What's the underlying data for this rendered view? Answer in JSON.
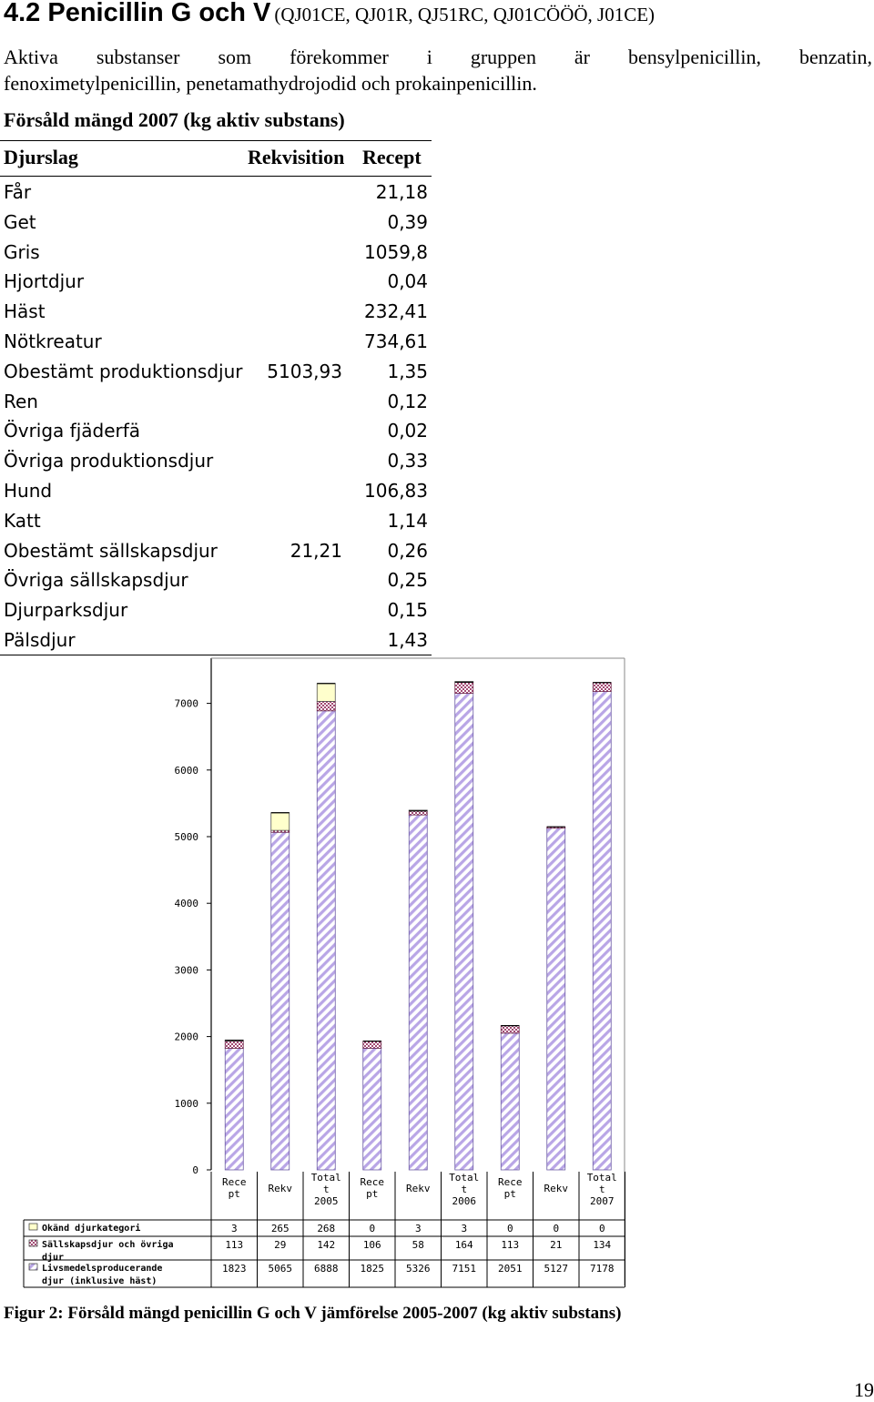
{
  "heading": {
    "title": "4.2 Penicillin G och V",
    "codes": "(QJ01CE, QJ01R, QJ51RC, QJ01CÖÖÖ, J01CE)"
  },
  "intro": {
    "line1_words": [
      "Aktiva",
      "substanser",
      "som",
      "förekommer",
      "i",
      "gruppen",
      "är",
      "bensylpenicillin,",
      "benzatin,"
    ],
    "line2": "fenoximetylpenicillin, penetamathydrojodid och prokainpenicillin."
  },
  "table": {
    "title": "Försåld mängd 2007 (kg aktiv substans)",
    "headers": [
      "Djurslag",
      "Rekvisition",
      "Recept"
    ],
    "rows": [
      {
        "species": "Får",
        "rekvisition": "",
        "recept": "21,18"
      },
      {
        "species": "Get",
        "rekvisition": "",
        "recept": "0,39"
      },
      {
        "species": "Gris",
        "rekvisition": "",
        "recept": "1059,8"
      },
      {
        "species": "Hjortdjur",
        "rekvisition": "",
        "recept": "0,04"
      },
      {
        "species": "Häst",
        "rekvisition": "",
        "recept": "232,41"
      },
      {
        "species": "Nötkreatur",
        "rekvisition": "",
        "recept": "734,61"
      },
      {
        "species": "Obestämt produktionsdjur",
        "rekvisition": "5103,93",
        "recept": "1,35"
      },
      {
        "species": "Ren",
        "rekvisition": "",
        "recept": "0,12"
      },
      {
        "species": "Övriga fjäderfä",
        "rekvisition": "",
        "recept": "0,02"
      },
      {
        "species": "Övriga produktionsdjur",
        "rekvisition": "",
        "recept": "0,33"
      },
      {
        "species": "Hund",
        "rekvisition": "",
        "recept": "106,83"
      },
      {
        "species": "Katt",
        "rekvisition": "",
        "recept": "1,14"
      },
      {
        "species": "Obestämt sällskapsdjur",
        "rekvisition": "21,21",
        "recept": "0,26"
      },
      {
        "species": "Övriga sällskapsdjur",
        "rekvisition": "",
        "recept": "0,25"
      },
      {
        "species": "Djurparksdjur",
        "rekvisition": "",
        "recept": "0,15"
      },
      {
        "species": "Pälsdjur",
        "rekvisition": "",
        "recept": "1,43"
      }
    ]
  },
  "chart_data": {
    "type": "bar",
    "stacked": true,
    "ylim": [
      0,
      7500
    ],
    "yticks": [
      "0",
      "1000",
      "2000",
      "3000",
      "4000",
      "5000",
      "6000",
      "7000"
    ],
    "categories": [
      [
        "Rece",
        "pt"
      ],
      [
        "Rekv"
      ],
      [
        "Total",
        "t",
        "2005"
      ],
      [
        "Rece",
        "pt"
      ],
      [
        "Rekv"
      ],
      [
        "Total",
        "t",
        "2006"
      ],
      [
        "Rece",
        "pt"
      ],
      [
        "Rekv"
      ],
      [
        "Total",
        "t",
        "2007"
      ]
    ],
    "series": [
      {
        "name": [
          "Livsmedelsproducerande",
          "djur (inklusive häst)"
        ],
        "values": [
          1823,
          5065,
          6888,
          1825,
          5326,
          7151,
          2051,
          5127,
          7178
        ],
        "color": "#b9a6e6"
      },
      {
        "name": [
          "Sällskapsdjur och övriga",
          "djur"
        ],
        "values": [
          113,
          29,
          142,
          106,
          58,
          164,
          113,
          21,
          134
        ],
        "color": "#a34a74"
      },
      {
        "name": [
          "Okänd djurkategori"
        ],
        "values": [
          3,
          265,
          268,
          0,
          3,
          3,
          0,
          0,
          0
        ],
        "color": "#ffffcc"
      }
    ],
    "legend_order": [
      2,
      1,
      0
    ],
    "value_labels": [
      [
        "3",
        "265",
        "268",
        "0",
        "3",
        "3",
        "0",
        "0",
        "0"
      ],
      [
        "113",
        "29",
        "142",
        "106",
        "58",
        "164",
        "113",
        "21",
        "134"
      ],
      [
        "1823",
        "5065",
        "6888",
        "1825",
        "5326",
        "7151",
        "2051",
        "5127",
        "7178"
      ]
    ]
  },
  "caption": "Figur 2: Försåld mängd penicillin G och V jämförelse 2005-2007 (kg aktiv substans)",
  "page_number": "19"
}
